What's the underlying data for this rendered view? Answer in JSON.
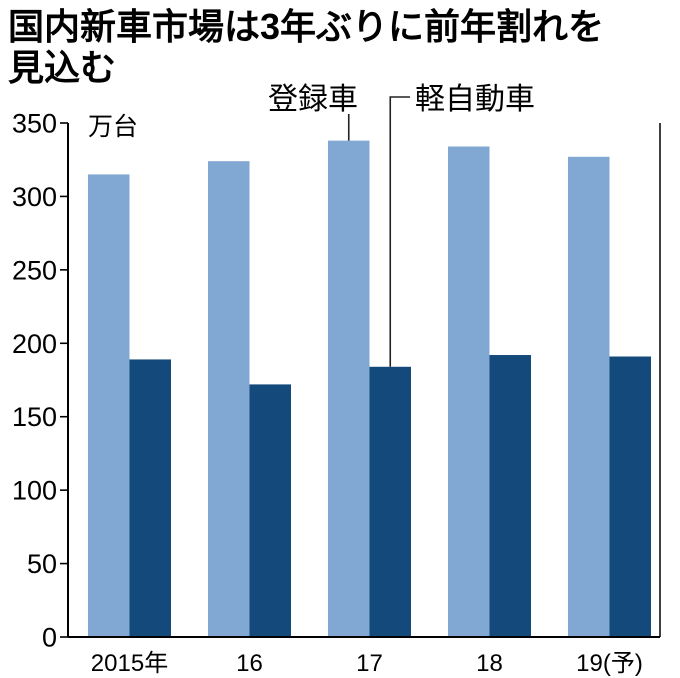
{
  "chart_data": {
    "type": "bar",
    "title_lines": [
      "国内新車市場は3年ぶりに前年割れを",
      "見込む"
    ],
    "ylabel": "万台",
    "categories": [
      "2015年",
      "16",
      "17",
      "18",
      "19(予)"
    ],
    "series": [
      {
        "name": "登録車",
        "values": [
          315,
          324,
          338,
          334,
          327
        ],
        "color": "#80a8d3"
      },
      {
        "name": "軽自動車",
        "values": [
          189,
          172,
          184,
          192,
          191
        ],
        "color": "#14497b"
      }
    ],
    "ylim": [
      0,
      350
    ],
    "yticks": [
      0,
      50,
      100,
      150,
      200,
      250,
      300,
      350
    ],
    "grid": false
  }
}
